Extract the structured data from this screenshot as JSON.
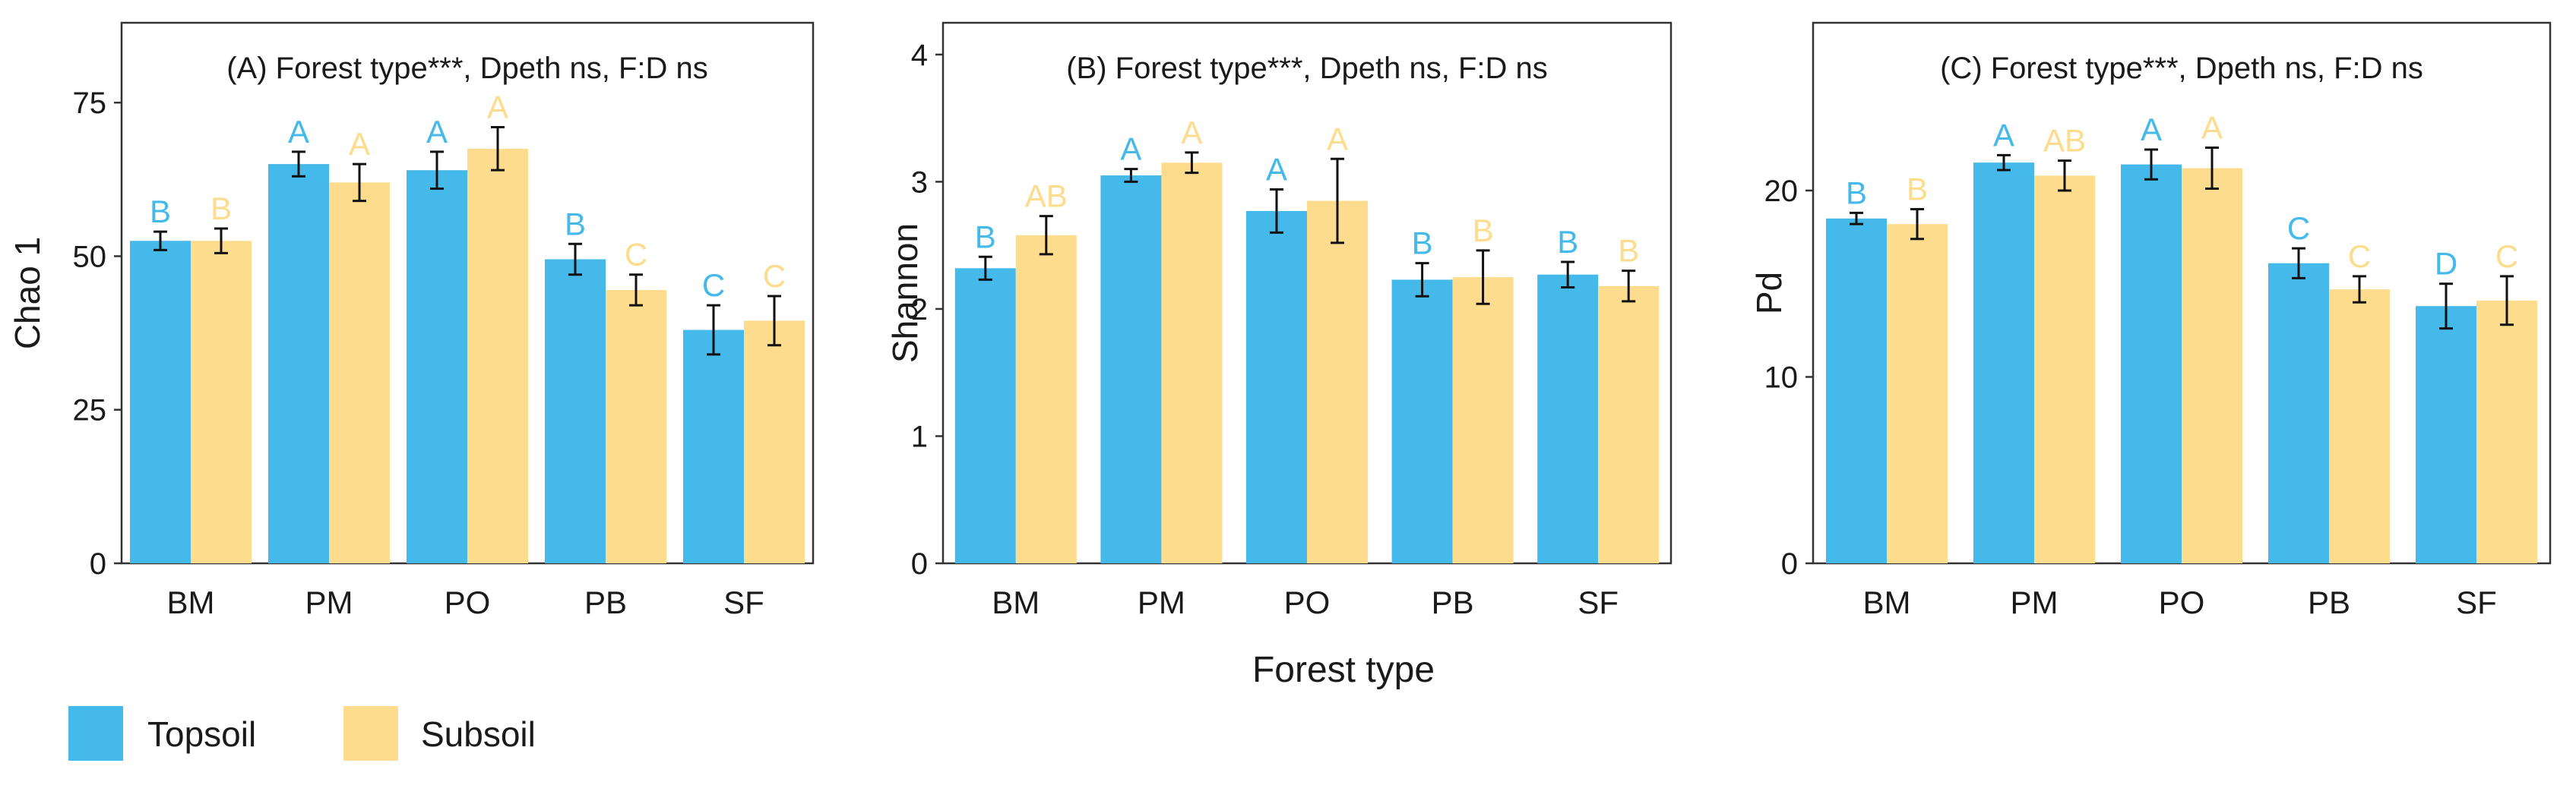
{
  "colors": {
    "topsoil": "#45B9EA",
    "subsoil": "#FEDC8D",
    "axis": "#333333",
    "text": "#1a1a1a"
  },
  "x_axis_label": "Forest type",
  "legend": {
    "topsoil": "Topsoil",
    "subsoil": "Subsoil"
  },
  "chart_data": [
    {
      "type": "bar",
      "title": "(A)   Forest type***, Dpeth ns, F:D ns",
      "xlabel": "",
      "ylabel": "Chao 1",
      "ylim": [
        0,
        88
      ],
      "yticks": [
        0,
        25,
        50,
        75
      ],
      "categories": [
        "BM",
        "PM",
        "PO",
        "PB",
        "SF"
      ],
      "series": [
        {
          "name": "Topsoil",
          "values": [
            52.5,
            65,
            64,
            49.5,
            38
          ],
          "errors": [
            1.5,
            2,
            3,
            2.5,
            4
          ],
          "letters": [
            "B",
            "A",
            "A",
            "B",
            "C"
          ]
        },
        {
          "name": "Subsoil",
          "values": [
            52.5,
            62,
            67.5,
            44.5,
            39.5
          ],
          "errors": [
            2,
            3,
            3.5,
            2.5,
            4
          ],
          "letters": [
            "B",
            "A",
            "A",
            "C",
            "C"
          ]
        }
      ]
    },
    {
      "type": "bar",
      "title": "(B)   Forest type***, Dpeth ns, F:D ns",
      "xlabel": "Forest type",
      "ylabel": "Shannon",
      "ylim": [
        0,
        4.25
      ],
      "yticks": [
        0,
        1,
        2,
        3,
        4
      ],
      "categories": [
        "BM",
        "PM",
        "PO",
        "PB",
        "SF"
      ],
      "series": [
        {
          "name": "Topsoil",
          "values": [
            2.32,
            3.05,
            2.77,
            2.23,
            2.27
          ],
          "errors": [
            0.09,
            0.05,
            0.17,
            0.13,
            0.1
          ],
          "letters": [
            "B",
            "A",
            "A",
            "B",
            "B"
          ]
        },
        {
          "name": "Subsoil",
          "values": [
            2.58,
            3.15,
            2.85,
            2.25,
            2.18
          ],
          "errors": [
            0.15,
            0.08,
            0.33,
            0.21,
            0.12
          ],
          "letters": [
            "AB",
            "A",
            "A",
            "B",
            "B"
          ]
        }
      ]
    },
    {
      "type": "bar",
      "title": "(C)   Forest type***, Dpeth ns, F:D ns",
      "xlabel": "",
      "ylabel": "Pd",
      "ylim": [
        0,
        29
      ],
      "yticks": [
        0,
        10,
        20
      ],
      "categories": [
        "BM",
        "PM",
        "PO",
        "PB",
        "SF"
      ],
      "series": [
        {
          "name": "Topsoil",
          "values": [
            18.5,
            21.5,
            21.4,
            16.1,
            13.8
          ],
          "errors": [
            0.3,
            0.4,
            0.8,
            0.8,
            1.2
          ],
          "letters": [
            "B",
            "A",
            "A",
            "C",
            "D"
          ]
        },
        {
          "name": "Subsoil",
          "values": [
            18.2,
            20.8,
            21.2,
            14.7,
            14.1
          ],
          "errors": [
            0.8,
            0.8,
            1.1,
            0.7,
            1.3
          ],
          "letters": [
            "B",
            "AB",
            "A",
            "C",
            "C"
          ]
        }
      ]
    }
  ]
}
